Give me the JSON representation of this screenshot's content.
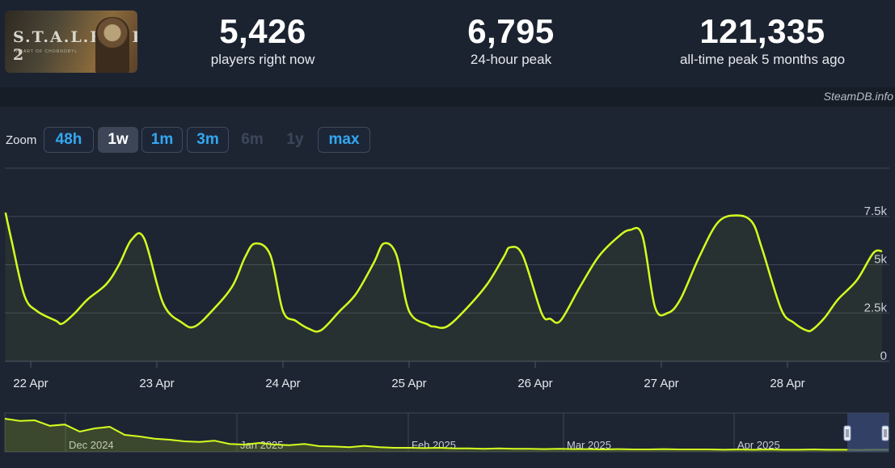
{
  "game": {
    "banner_title": "S.T.A.L.K.E.R. 2",
    "banner_subtitle": "HEART OF CHORNOBYL"
  },
  "stats": [
    {
      "value": "5,426",
      "label": "players right now"
    },
    {
      "value": "6,795",
      "label": "24-hour peak"
    },
    {
      "value": "121,335",
      "label": "all-time peak 5 months ago"
    }
  ],
  "credit": "SteamDB.info",
  "zoom": {
    "label": "Zoom",
    "buttons": [
      {
        "label": "48h",
        "state": "enabled"
      },
      {
        "label": "1w",
        "state": "active"
      },
      {
        "label": "1m",
        "state": "enabled"
      },
      {
        "label": "3m",
        "state": "enabled"
      },
      {
        "label": "6m",
        "state": "disabled"
      },
      {
        "label": "1y",
        "state": "disabled"
      },
      {
        "label": "max",
        "state": "enabled"
      }
    ]
  },
  "colors": {
    "line": "#d4ff1f",
    "accent": "#33a7f2",
    "navigator_mask": "#3a4a78"
  },
  "chart_data": {
    "type": "line",
    "title": "",
    "xlabel": "",
    "ylabel": "",
    "ylim": [
      0,
      10000
    ],
    "yticks": [
      "0",
      "2.5k",
      "5k",
      "7.5k"
    ],
    "ytick_values": [
      0,
      2500,
      5000,
      7500
    ],
    "xticks": [
      "22 Apr",
      "23 Apr",
      "24 Apr",
      "25 Apr",
      "26 Apr",
      "27 Apr",
      "28 Apr"
    ],
    "grid": true,
    "series": [
      {
        "x_days": [
          21.8,
          21.85,
          21.95,
          22.05,
          22.2,
          22.25,
          22.35,
          22.45,
          22.6,
          22.7,
          22.8,
          22.9,
          23.05,
          23.2,
          23.3,
          23.45,
          23.6,
          23.7,
          23.78,
          23.9,
          24.0,
          24.1,
          24.2,
          24.3,
          24.45,
          24.58,
          24.72,
          24.8,
          24.9,
          25.0,
          25.15,
          25.2,
          25.3,
          25.45,
          25.62,
          25.75,
          25.8,
          25.9,
          26.05,
          26.12,
          26.2,
          26.35,
          26.5,
          26.65,
          26.75,
          26.85,
          26.95,
          27.05,
          27.15,
          27.3,
          27.45,
          27.6,
          27.72,
          27.8,
          27.95,
          28.05,
          28.15,
          28.2,
          28.3,
          28.4,
          28.55,
          28.68,
          28.75
        ],
        "values": [
          7700,
          6200,
          3400,
          2600,
          2100,
          1950,
          2500,
          3200,
          4000,
          5000,
          6300,
          6350,
          3000,
          2000,
          1800,
          2700,
          3900,
          5400,
          6100,
          5500,
          2600,
          2100,
          1700,
          1600,
          2600,
          3500,
          5100,
          6100,
          5500,
          2600,
          1900,
          1800,
          1800,
          2700,
          4000,
          5400,
          5900,
          5500,
          2500,
          2200,
          2100,
          3800,
          5400,
          6400,
          6800,
          6500,
          2800,
          2500,
          3200,
          5400,
          7200,
          7550,
          7200,
          5800,
          2700,
          2000,
          1600,
          1650,
          2300,
          3200,
          4200,
          5600,
          5700
        ]
      }
    ]
  },
  "navigator": {
    "labels": [
      "Dec 2024",
      "Jan 2025",
      "Feb 2025",
      "Mar 2025",
      "Apr 2025"
    ],
    "values": [
      1.0,
      0.93,
      0.95,
      0.78,
      0.82,
      0.6,
      0.7,
      0.75,
      0.5,
      0.45,
      0.38,
      0.35,
      0.3,
      0.28,
      0.32,
      0.22,
      0.2,
      0.25,
      0.2,
      0.18,
      0.22,
      0.15,
      0.14,
      0.12,
      0.16,
      0.12,
      0.1,
      0.1,
      0.09,
      0.1,
      0.08,
      0.08,
      0.07,
      0.08,
      0.07,
      0.07,
      0.06,
      0.07,
      0.06,
      0.06,
      0.05,
      0.06,
      0.05,
      0.05,
      0.06,
      0.05,
      0.05,
      0.05,
      0.04,
      0.05,
      0.04,
      0.05,
      0.04,
      0.04,
      0.05,
      0.04,
      0.04,
      0.03,
      0.04,
      0.04
    ]
  }
}
